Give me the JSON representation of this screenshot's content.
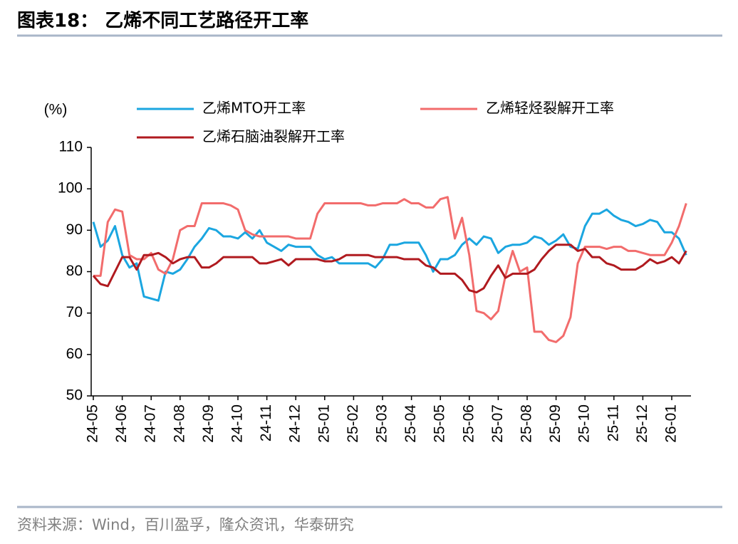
{
  "chart_data": {
    "type": "line",
    "title": "图表18：  乙烯不同工艺路径开工率",
    "y_label": "(%)",
    "source": "资料来源：Wind，百川盈孚，隆众资讯，华泰研究",
    "categories": [
      "24-05",
      null,
      null,
      null,
      "24-06",
      null,
      null,
      null,
      "24-07",
      null,
      null,
      null,
      "24-08",
      null,
      null,
      null,
      "24-09",
      null,
      null,
      null,
      "24-10",
      null,
      null,
      null,
      "24-11",
      null,
      null,
      null,
      "24-12",
      null,
      null,
      null,
      "25-01",
      null,
      null,
      null,
      "25-02",
      null,
      null,
      null,
      "25-03",
      null,
      null,
      null,
      "25-04",
      null,
      null,
      null,
      "25-05",
      null,
      null,
      null,
      "25-06",
      null,
      null,
      null,
      "25-07",
      null,
      null,
      null,
      "25-08",
      null,
      null,
      null,
      "25-09",
      null,
      null,
      null,
      "25-10",
      null,
      null,
      null,
      "25-11",
      null,
      null,
      null,
      "25-12",
      null,
      null,
      null,
      "26-01",
      null,
      null
    ],
    "series": [
      {
        "name": "乙烯MTO开工率",
        "color": "#1ba6e0",
        "values": [
          92,
          86,
          87.5,
          91,
          84,
          81,
          82,
          74,
          73.5,
          73,
          80,
          79.5,
          80.5,
          83,
          86,
          88,
          90.5,
          90,
          88.5,
          88.5,
          88,
          89.5,
          88,
          90,
          87,
          86,
          85,
          86.5,
          86,
          86,
          86,
          84,
          83,
          83.5,
          82,
          82,
          82,
          82,
          82,
          81,
          83,
          86.5,
          86.5,
          87,
          87,
          87,
          84,
          80,
          83,
          83,
          84,
          86.5,
          88,
          86.5,
          88.5,
          88,
          84.5,
          86,
          86.5,
          86.5,
          87,
          88.5,
          88,
          86.5,
          87.5,
          89,
          86,
          85.5,
          91,
          94,
          94,
          95,
          93.5,
          92.5,
          92,
          91,
          91.5,
          92.5,
          92,
          89.5,
          89.5,
          88,
          84
        ]
      },
      {
        "name": "乙烯轻烃裂解开工率",
        "color": "#f26c6c",
        "values": [
          79,
          79,
          92,
          95,
          94.5,
          84,
          83,
          83,
          84.5,
          80.5,
          79.5,
          83,
          90,
          91,
          91,
          96.5,
          96.5,
          96.5,
          96.5,
          96,
          95,
          90,
          89,
          88.5,
          88.5,
          88.5,
          88.5,
          88.5,
          88,
          88,
          88,
          94,
          96.5,
          96.5,
          96.5,
          96.5,
          96.5,
          96.5,
          96,
          96,
          96.5,
          96.5,
          96.5,
          97.5,
          96.5,
          96.5,
          95.5,
          95.5,
          97.5,
          98,
          88,
          93,
          84,
          70.5,
          70,
          68.5,
          70.5,
          79,
          85,
          80,
          81,
          65.5,
          65.5,
          63.5,
          63,
          64.5,
          69,
          82,
          86,
          86,
          86,
          85.5,
          86,
          86,
          85,
          85,
          84.5,
          84,
          84,
          84,
          87,
          91,
          96.5
        ]
      },
      {
        "name": "乙烯石脑油裂解开工率",
        "color": "#b01a1f",
        "values": [
          79,
          77,
          76.5,
          80,
          83.5,
          83.5,
          80.5,
          84,
          84,
          84.5,
          83.5,
          82,
          83,
          83.5,
          83.5,
          81,
          81,
          82,
          83.5,
          83.5,
          83.5,
          83.5,
          83.5,
          82,
          82,
          82.5,
          83,
          81.5,
          83,
          83,
          83,
          83,
          82.5,
          82.5,
          83,
          84,
          84,
          84,
          84,
          83.5,
          83.5,
          83.5,
          83.5,
          83,
          83,
          83,
          81.5,
          81,
          79.5,
          79.5,
          79.5,
          78,
          75.5,
          75,
          76,
          79,
          81.5,
          78.5,
          79.5,
          79.5,
          79.5,
          80.5,
          83,
          85,
          86.5,
          86.5,
          86.5,
          85,
          85.5,
          83.5,
          83.5,
          82,
          81.5,
          80.5,
          80.5,
          80.5,
          81.5,
          83,
          82,
          82.5,
          83.5,
          82,
          85
        ]
      }
    ],
    "ylim": [
      50,
      110
    ],
    "yticks": [
      50,
      60,
      70,
      80,
      90,
      100,
      110
    ]
  }
}
